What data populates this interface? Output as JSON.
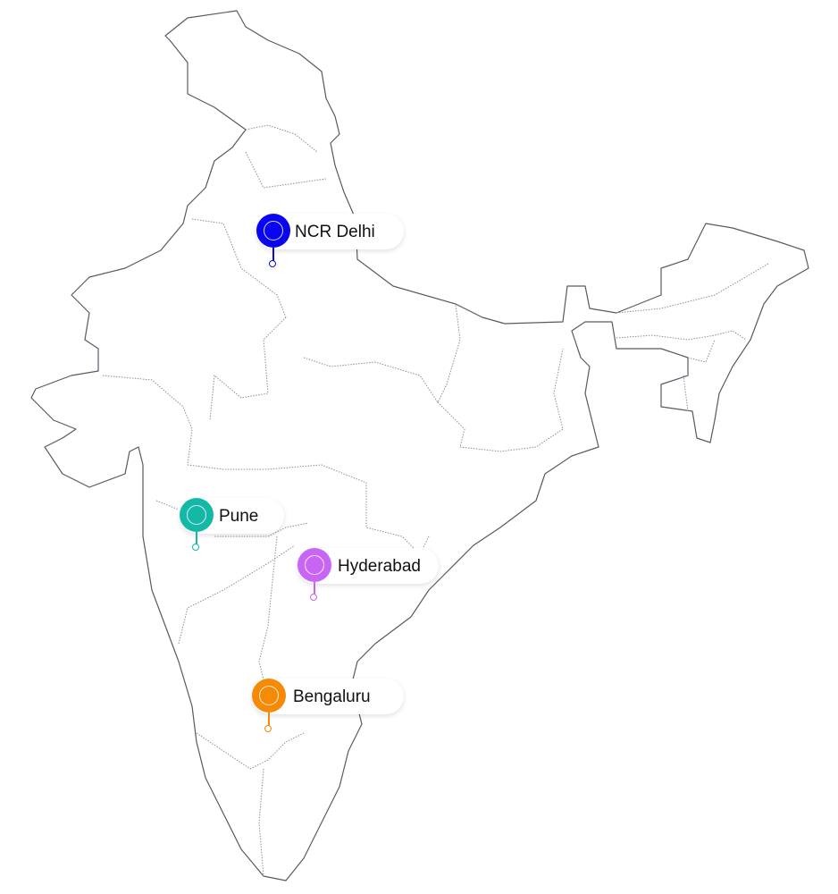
{
  "map": {
    "region": "India",
    "outline_color": "#555a66",
    "state_border_color": "#8a8f99"
  },
  "markers": [
    {
      "label": "NCR Delhi",
      "color": "#0a05f0",
      "icon": "location-pin-icon"
    },
    {
      "label": "Pune",
      "color": "#14b8a6",
      "icon": "location-pin-icon"
    },
    {
      "label": "Hyderabad",
      "color": "#c865f5",
      "icon": "location-pin-icon"
    },
    {
      "label": "Bengaluru",
      "color": "#f58a07",
      "icon": "location-pin-icon"
    }
  ]
}
